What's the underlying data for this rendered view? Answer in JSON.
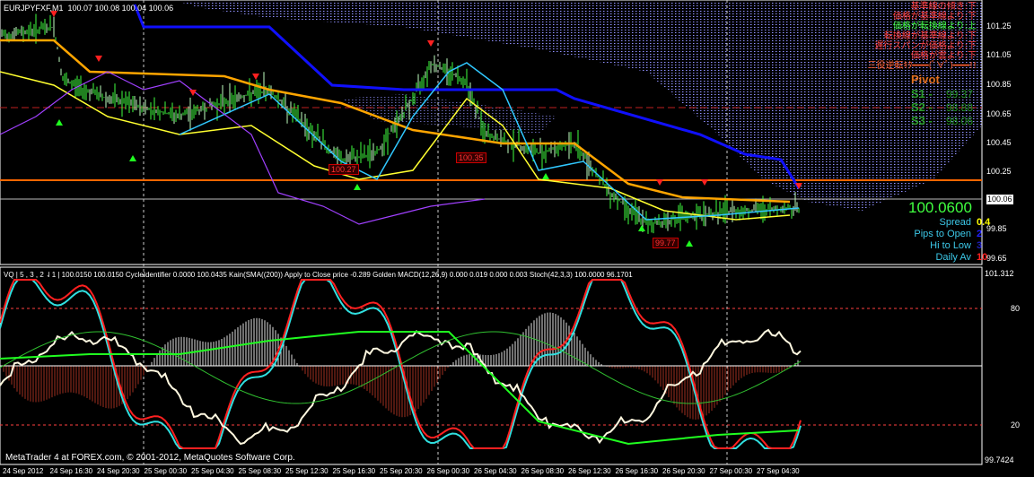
{
  "header": {
    "symbol": "EURJPYFXF,M1",
    "ohlc": "100.07 100.08 100.04 100.06"
  },
  "status_lines": [
    {
      "text": "基準線の傾き:下",
      "color": "#ff4040"
    },
    {
      "text": "価格が基準線より:下",
      "color": "#ff4040"
    },
    {
      "text": "価格が転換線より:上",
      "color": "#40ff40"
    },
    {
      "text": "転換線が基準線より:下",
      "color": "#ff4040"
    },
    {
      "text": "遅行スパンが価格より:下",
      "color": "#ff4040"
    },
    {
      "text": "価格が雲より:下",
      "color": "#ff4040"
    },
    {
      "text": "三役逆転ｷﾀ━━━(ﾟ∀ﾟ)━━━!!",
      "color": "#ff6030"
    }
  ],
  "pivot": {
    "label": "Pivot",
    "levels": [
      {
        "name": "S1 -",
        "value": "99.37"
      },
      {
        "name": "S2 -",
        "value": "98.88"
      },
      {
        "name": "S3 -",
        "value": "98.06"
      }
    ]
  },
  "info_panel": {
    "price": "100.0600",
    "rows": [
      {
        "label": "Spread",
        "value": "0.4",
        "color": "#ffff00"
      },
      {
        "label": "Pips to Open",
        "value": "2",
        "color": "#2020ff"
      },
      {
        "label": "Hi to Low",
        "value": "3",
        "color": "#2020c0"
      },
      {
        "label": "Daily Av",
        "value": "10",
        "color": "#ff2020"
      }
    ]
  },
  "price_axis": [
    "101.25",
    "101.05",
    "100.85",
    "100.65",
    "100.45",
    "100.25",
    "99.85",
    "99.65"
  ],
  "current_price": "100.06",
  "price_labels": [
    "100.27",
    "100.35",
    "99.77"
  ],
  "indicator": {
    "header": "VQ | 5 , 3 , 2 ⇃1  |  100.0150 100.0150  CycleIdentifier 0.0000 100.0435  Kain(SMA((200)) Apply to Close price -0.289  Golden MACD(12,26,9) 0.000 0.019 0.000 0.003  Stoch(42,3,3) 100.0000 96.1701",
    "axis": [
      "101.312",
      "80",
      "20",
      "99.7424"
    ]
  },
  "time_axis": [
    "24 Sep 2012",
    "24 Sep 16:30",
    "24 Sep 20:30",
    "25 Sep 00:30",
    "25 Sep 04:30",
    "25 Sep 08:30",
    "25 Sep 12:30",
    "25 Sep 16:30",
    "25 Sep 20:30",
    "26 Sep 00:30",
    "26 Sep 04:30",
    "26 Sep 08:30",
    "26 Sep 12:30",
    "26 Sep 16:30",
    "26 Sep 20:30",
    "27 Sep 00:30",
    "27 Sep 04:30"
  ],
  "copyright": "MetaTrader 4 at FOREX.com, © 2001-2012, MetaQuotes Software Corp.",
  "colors": {
    "kijun": "#1010ff",
    "tenkan": "#ffa500",
    "support": "#ff6600",
    "cloud": "#8080ff",
    "bars": "#40ff40",
    "stoch_main": "#ff2020",
    "stoch_signal": "#30e0e0"
  }
}
